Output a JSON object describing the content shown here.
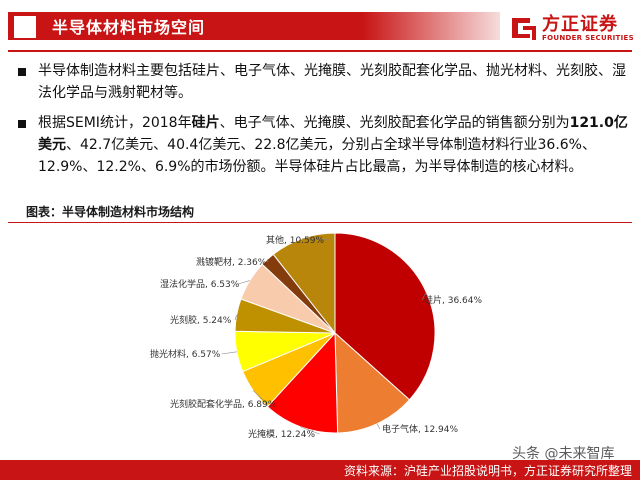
{
  "header": {
    "title": "半导体材料市场空间",
    "logo_cn": "方正证券",
    "logo_en": "FOUNDER SECURITIES"
  },
  "bullets": [
    {
      "text": "半导体制造材料主要包括硅片、电子气体、光掩膜、光刻胶配套化学品、抛光材料、光刻胶、湿法化学品与溅射靶材等。"
    },
    {
      "parts": [
        {
          "t": "根据SEMI统计，2018年",
          "b": false
        },
        {
          "t": "硅片",
          "b": true
        },
        {
          "t": "、电子气体、光掩膜、光刻胶配套化学品的销售额分别为",
          "b": false
        },
        {
          "t": "121.0亿美元",
          "b": true
        },
        {
          "t": "、42.7亿美元、40.4亿美元、22.8亿美元，分别占全球半导体制造材料行业36.6%、12.9%、12.2%、6.9%的市场份额。半导体硅片占比最高，为半导体制造的核心材料。",
          "b": false
        }
      ]
    }
  ],
  "chart_caption": "图表：半导体制造材料市场结构",
  "chart_data": {
    "type": "pie",
    "slices": [
      {
        "label": "硅片, 36.64%",
        "value": 36.64,
        "color": "#c00000"
      },
      {
        "label": "电子气体, 12.94%",
        "value": 12.94,
        "color": "#ed7d31"
      },
      {
        "label": "光掩模, 12.24%",
        "value": 12.24,
        "color": "#ff0000"
      },
      {
        "label": "光刻胶配套化学品, 6.89%",
        "value": 6.89,
        "color": "#ffc000"
      },
      {
        "label": "抛光材料, 6.57%",
        "value": 6.57,
        "color": "#ffff00"
      },
      {
        "label": "光刻胶, 5.24%",
        "value": 5.24,
        "color": "#bf9000"
      },
      {
        "label": "湿法化学品, 6.53%",
        "value": 6.53,
        "color": "#f8cbad"
      },
      {
        "label": "溅镀靶材, 2.36%",
        "value": 2.36,
        "color": "#843c0c"
      },
      {
        "label": "其他, 10.59%",
        "value": 10.59,
        "color": "#b8860b"
      }
    ]
  },
  "footer": {
    "source": "资料来源：沪硅产业招股说明书，方正证券研究所整理",
    "watermark": "头条 @未来智库"
  },
  "colors": {
    "brand": "#c81414"
  }
}
